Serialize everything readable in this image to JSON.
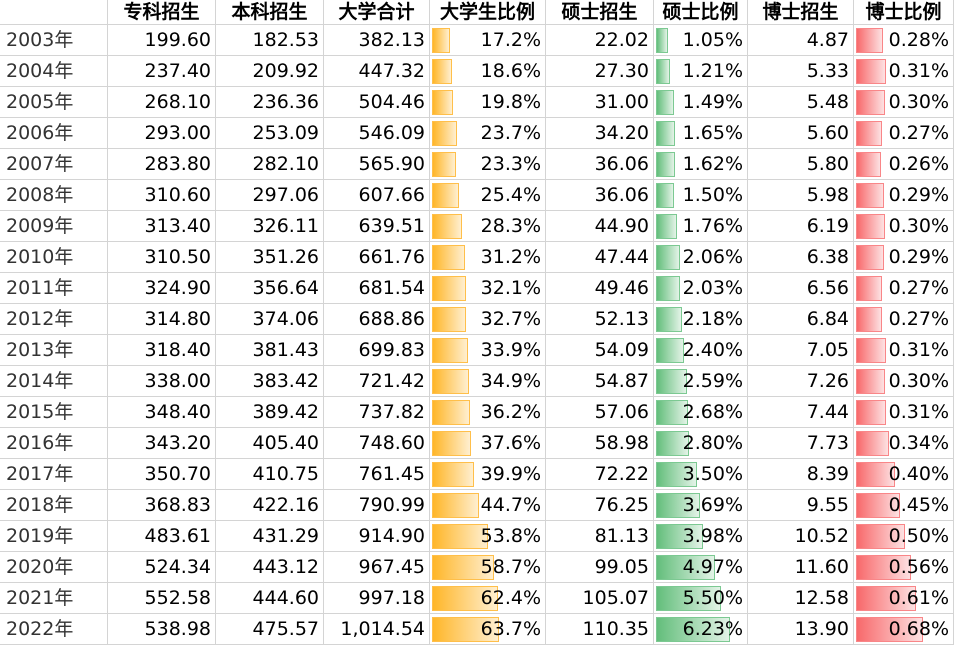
{
  "headers": [
    "",
    "专科招生",
    "本科招生",
    "大学合计",
    "大学生比例",
    "硕士招生",
    "硕士比例",
    "博士招生",
    "博士比例"
  ],
  "colors": {
    "college_ratio_bar": "#ffb628",
    "master_ratio_bar": "#63be7b",
    "phd_ratio_bar": "#f8696b",
    "gridline": "#d4d4d4"
  },
  "rows": [
    {
      "year": "2003年",
      "zhuanke": "199.60",
      "benke": "182.53",
      "total": "382.13",
      "college_ratio": "17.2%",
      "college_ratio_value": 17.2,
      "master": "22.02",
      "master_ratio": "1.05%",
      "master_ratio_value": 1.05,
      "phd": "4.87",
      "phd_ratio": "0.28%",
      "phd_ratio_value": 0.28
    },
    {
      "year": "2004年",
      "zhuanke": "237.40",
      "benke": "209.92",
      "total": "447.32",
      "college_ratio": "18.6%",
      "college_ratio_value": 18.6,
      "master": "27.30",
      "master_ratio": "1.21%",
      "master_ratio_value": 1.21,
      "phd": "5.33",
      "phd_ratio": "0.31%",
      "phd_ratio_value": 0.31
    },
    {
      "year": "2005年",
      "zhuanke": "268.10",
      "benke": "236.36",
      "total": "504.46",
      "college_ratio": "19.8%",
      "college_ratio_value": 19.8,
      "master": "31.00",
      "master_ratio": "1.49%",
      "master_ratio_value": 1.49,
      "phd": "5.48",
      "phd_ratio": "0.30%",
      "phd_ratio_value": 0.3
    },
    {
      "year": "2006年",
      "zhuanke": "293.00",
      "benke": "253.09",
      "total": "546.09",
      "college_ratio": "23.7%",
      "college_ratio_value": 23.7,
      "master": "34.20",
      "master_ratio": "1.65%",
      "master_ratio_value": 1.65,
      "phd": "5.60",
      "phd_ratio": "0.27%",
      "phd_ratio_value": 0.27
    },
    {
      "year": "2007年",
      "zhuanke": "283.80",
      "benke": "282.10",
      "total": "565.90",
      "college_ratio": "23.3%",
      "college_ratio_value": 23.3,
      "master": "36.06",
      "master_ratio": "1.62%",
      "master_ratio_value": 1.62,
      "phd": "5.80",
      "phd_ratio": "0.26%",
      "phd_ratio_value": 0.26
    },
    {
      "year": "2008年",
      "zhuanke": "310.60",
      "benke": "297.06",
      "total": "607.66",
      "college_ratio": "25.4%",
      "college_ratio_value": 25.4,
      "master": "36.06",
      "master_ratio": "1.50%",
      "master_ratio_value": 1.5,
      "phd": "5.98",
      "phd_ratio": "0.29%",
      "phd_ratio_value": 0.29
    },
    {
      "year": "2009年",
      "zhuanke": "313.40",
      "benke": "326.11",
      "total": "639.51",
      "college_ratio": "28.3%",
      "college_ratio_value": 28.3,
      "master": "44.90",
      "master_ratio": "1.76%",
      "master_ratio_value": 1.76,
      "phd": "6.19",
      "phd_ratio": "0.30%",
      "phd_ratio_value": 0.3
    },
    {
      "year": "2010年",
      "zhuanke": "310.50",
      "benke": "351.26",
      "total": "661.76",
      "college_ratio": "31.2%",
      "college_ratio_value": 31.2,
      "master": "47.44",
      "master_ratio": "2.06%",
      "master_ratio_value": 2.06,
      "phd": "6.38",
      "phd_ratio": "0.29%",
      "phd_ratio_value": 0.29
    },
    {
      "year": "2011年",
      "zhuanke": "324.90",
      "benke": "356.64",
      "total": "681.54",
      "college_ratio": "32.1%",
      "college_ratio_value": 32.1,
      "master": "49.46",
      "master_ratio": "2.03%",
      "master_ratio_value": 2.03,
      "phd": "6.56",
      "phd_ratio": "0.27%",
      "phd_ratio_value": 0.27
    },
    {
      "year": "2012年",
      "zhuanke": "314.80",
      "benke": "374.06",
      "total": "688.86",
      "college_ratio": "32.7%",
      "college_ratio_value": 32.7,
      "master": "52.13",
      "master_ratio": "2.18%",
      "master_ratio_value": 2.18,
      "phd": "6.84",
      "phd_ratio": "0.27%",
      "phd_ratio_value": 0.27
    },
    {
      "year": "2013年",
      "zhuanke": "318.40",
      "benke": "381.43",
      "total": "699.83",
      "college_ratio": "33.9%",
      "college_ratio_value": 33.9,
      "master": "54.09",
      "master_ratio": "2.40%",
      "master_ratio_value": 2.4,
      "phd": "7.05",
      "phd_ratio": "0.31%",
      "phd_ratio_value": 0.31
    },
    {
      "year": "2014年",
      "zhuanke": "338.00",
      "benke": "383.42",
      "total": "721.42",
      "college_ratio": "34.9%",
      "college_ratio_value": 34.9,
      "master": "54.87",
      "master_ratio": "2.59%",
      "master_ratio_value": 2.59,
      "phd": "7.26",
      "phd_ratio": "0.30%",
      "phd_ratio_value": 0.3
    },
    {
      "year": "2015年",
      "zhuanke": "348.40",
      "benke": "389.42",
      "total": "737.82",
      "college_ratio": "36.2%",
      "college_ratio_value": 36.2,
      "master": "57.06",
      "master_ratio": "2.68%",
      "master_ratio_value": 2.68,
      "phd": "7.44",
      "phd_ratio": "0.31%",
      "phd_ratio_value": 0.31
    },
    {
      "year": "2016年",
      "zhuanke": "343.20",
      "benke": "405.40",
      "total": "748.60",
      "college_ratio": "37.6%",
      "college_ratio_value": 37.6,
      "master": "58.98",
      "master_ratio": "2.80%",
      "master_ratio_value": 2.8,
      "phd": "7.73",
      "phd_ratio": "0.34%",
      "phd_ratio_value": 0.34
    },
    {
      "year": "2017年",
      "zhuanke": "350.70",
      "benke": "410.75",
      "total": "761.45",
      "college_ratio": "39.9%",
      "college_ratio_value": 39.9,
      "master": "72.22",
      "master_ratio": "3.50%",
      "master_ratio_value": 3.5,
      "phd": "8.39",
      "phd_ratio": "0.40%",
      "phd_ratio_value": 0.4
    },
    {
      "year": "2018年",
      "zhuanke": "368.83",
      "benke": "422.16",
      "total": "790.99",
      "college_ratio": "44.7%",
      "college_ratio_value": 44.7,
      "master": "76.25",
      "master_ratio": "3.69%",
      "master_ratio_value": 3.69,
      "phd": "9.55",
      "phd_ratio": "0.45%",
      "phd_ratio_value": 0.45
    },
    {
      "year": "2019年",
      "zhuanke": "483.61",
      "benke": "431.29",
      "total": "914.90",
      "college_ratio": "53.8%",
      "college_ratio_value": 53.8,
      "master": "81.13",
      "master_ratio": "3.98%",
      "master_ratio_value": 3.98,
      "phd": "10.52",
      "phd_ratio": "0.50%",
      "phd_ratio_value": 0.5
    },
    {
      "year": "2020年",
      "zhuanke": "524.34",
      "benke": "443.12",
      "total": "967.45",
      "college_ratio": "58.7%",
      "college_ratio_value": 58.7,
      "master": "99.05",
      "master_ratio": "4.97%",
      "master_ratio_value": 4.97,
      "phd": "11.60",
      "phd_ratio": "0.56%",
      "phd_ratio_value": 0.56
    },
    {
      "year": "2021年",
      "zhuanke": "552.58",
      "benke": "444.60",
      "total": "997.18",
      "college_ratio": "62.4%",
      "college_ratio_value": 62.4,
      "master": "105.07",
      "master_ratio": "5.50%",
      "master_ratio_value": 5.5,
      "phd": "12.58",
      "phd_ratio": "0.61%",
      "phd_ratio_value": 0.61
    },
    {
      "year": "2022年",
      "zhuanke": "538.98",
      "benke": "475.57",
      "total": "1,014.54",
      "college_ratio": "63.7%",
      "college_ratio_value": 63.7,
      "master": "110.35",
      "master_ratio": "6.23%",
      "master_ratio_value": 6.23,
      "phd": "13.90",
      "phd_ratio": "0.68%",
      "phd_ratio_value": 0.68
    }
  ]
}
